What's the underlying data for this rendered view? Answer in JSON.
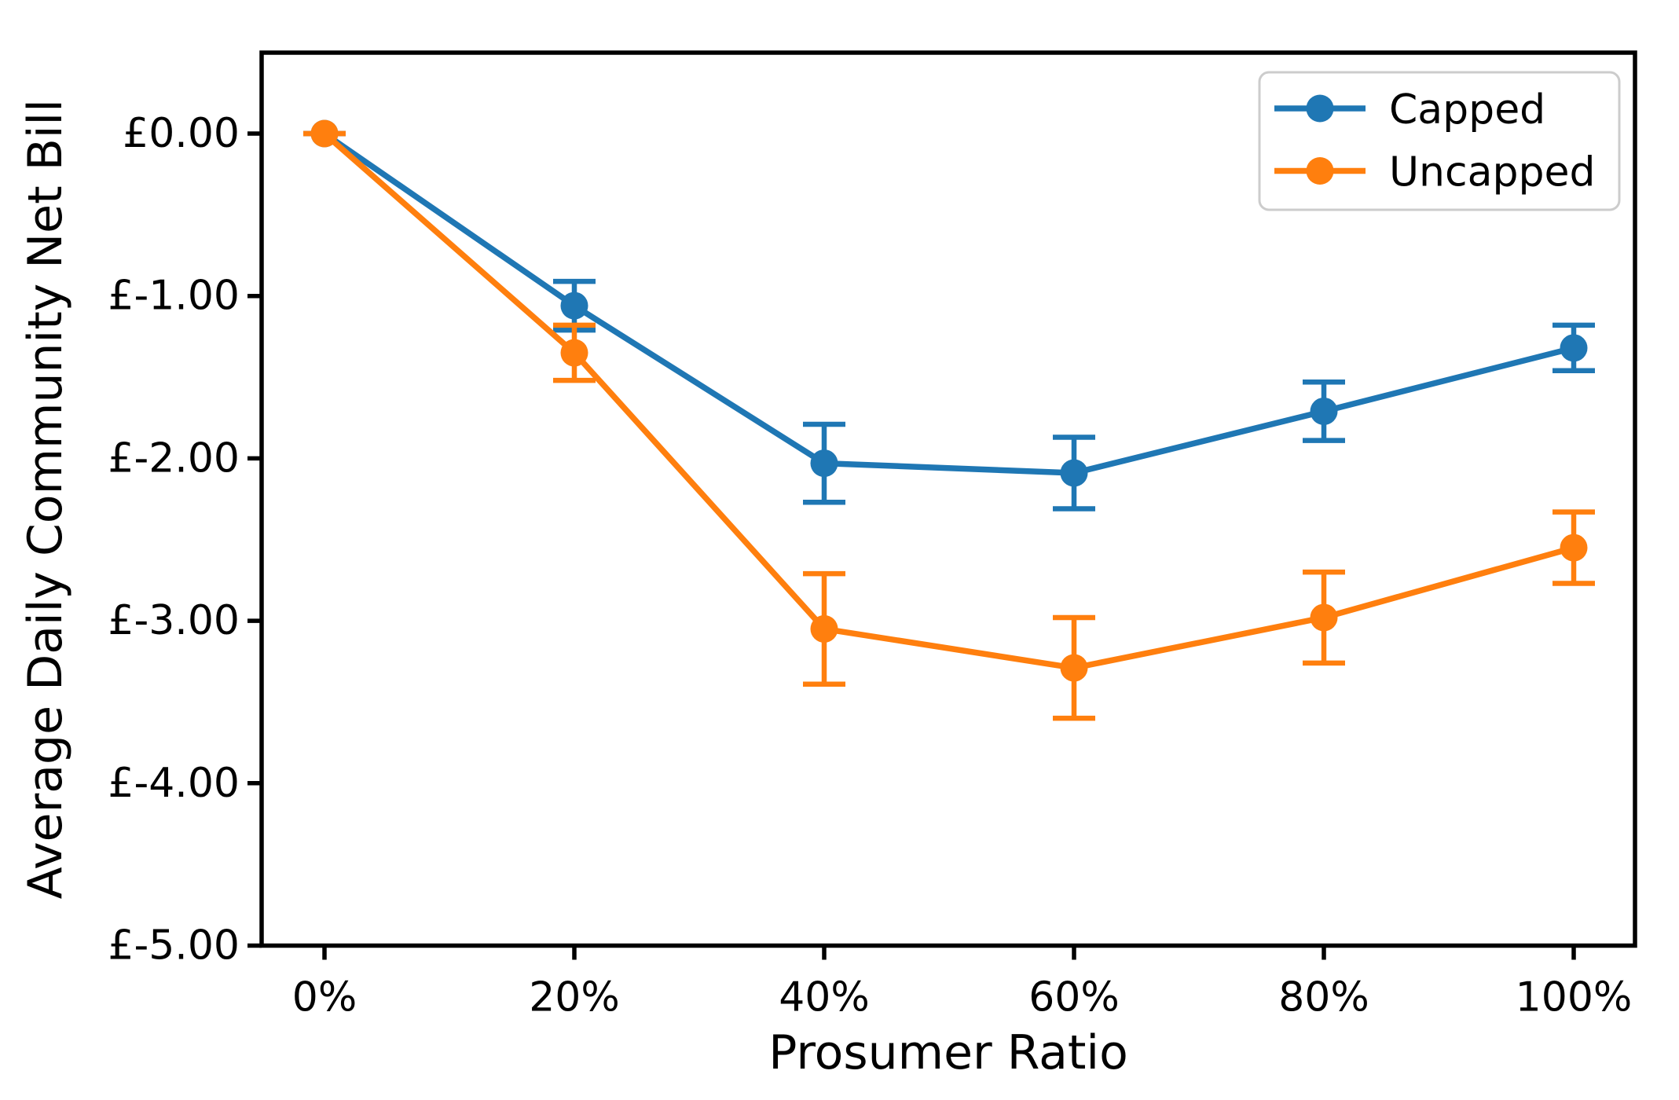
{
  "figure": {
    "background": "#ffffff"
  },
  "chart_data": {
    "type": "line",
    "title": "",
    "xlabel": "Prosumer Ratio",
    "ylabel": "Average Daily Community Net Bill",
    "currency": "£",
    "categories": [
      "0%",
      "20%",
      "40%",
      "60%",
      "80%",
      "100%"
    ],
    "x_values_percent": [
      0,
      20,
      40,
      60,
      80,
      100
    ],
    "y_tick_labels": [
      "£0.00",
      "£-1.00",
      "£-2.00",
      "£-3.00",
      "£-4.00",
      "£-5.00"
    ],
    "y_tick_values": [
      0,
      -1,
      -2,
      -3,
      -4,
      -5
    ],
    "ylim": [
      -5.0,
      0.5
    ],
    "xlim_percent": [
      -5,
      105
    ],
    "grid": false,
    "marker": "circle",
    "error_bars": true,
    "legend": {
      "position": "upper right",
      "entries": [
        "Capped",
        "Uncapped"
      ]
    },
    "series": [
      {
        "name": "Capped",
        "color": "#1f77b4",
        "values": [
          0.0,
          -1.06,
          -2.03,
          -2.09,
          -1.71,
          -1.32
        ],
        "errors": [
          0.0,
          0.15,
          0.24,
          0.22,
          0.18,
          0.14
        ]
      },
      {
        "name": "Uncapped",
        "color": "#ff7f0e",
        "values": [
          0.0,
          -1.35,
          -3.05,
          -3.29,
          -2.98,
          -2.55
        ],
        "errors": [
          0.0,
          0.17,
          0.34,
          0.31,
          0.28,
          0.22
        ]
      }
    ]
  }
}
